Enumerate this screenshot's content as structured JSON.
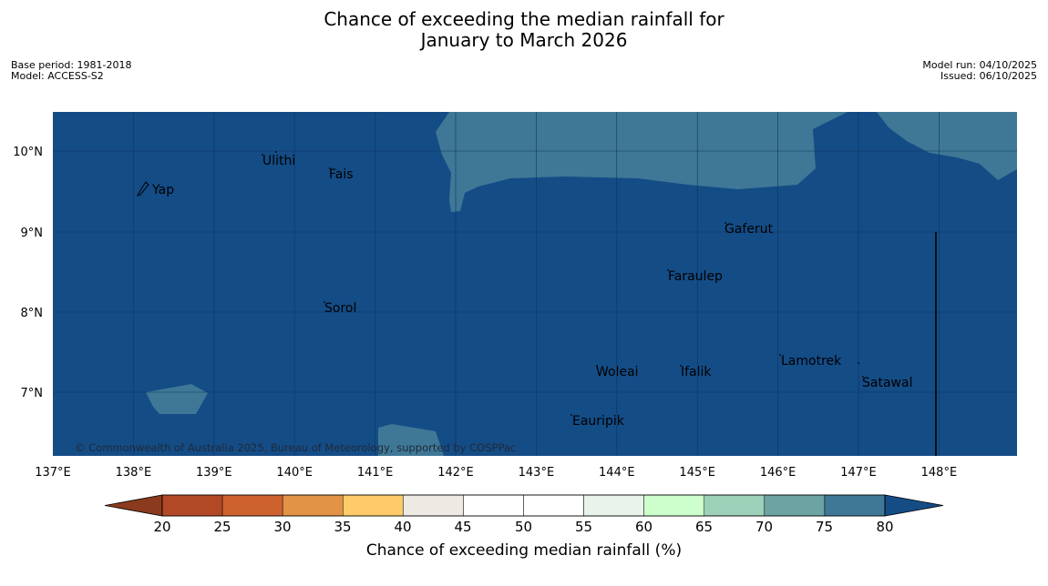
{
  "header": {
    "title_line1": "Chance of exceeding the median rainfall for",
    "title_line2": "January to March 2026",
    "base_period": "Base period: 1981-2018",
    "model": "Model: ACCESS-S2",
    "model_run": "Model run: 04/10/2025",
    "issued": "Issued: 06/10/2025"
  },
  "map": {
    "lon_ticks": [
      "137°E",
      "138°E",
      "139°E",
      "140°E",
      "141°E",
      "142°E",
      "143°E",
      "144°E",
      "145°E",
      "146°E",
      "147°E",
      "148°E"
    ],
    "lat_ticks": [
      "10°N",
      "9°N",
      "8°N",
      "7°N"
    ],
    "islands": [
      {
        "name": "Yap"
      },
      {
        "name": "Ulithi"
      },
      {
        "name": "Fais"
      },
      {
        "name": "Gaferut"
      },
      {
        "name": "Faraulep"
      },
      {
        "name": "Sorol"
      },
      {
        "name": "Woleai"
      },
      {
        "name": "Ifalik"
      },
      {
        "name": "Lamotrek"
      },
      {
        "name": "Satawal"
      },
      {
        "name": "Eauripik"
      }
    ],
    "copyright": "© Commonwealth of Australia 2025, Bureau of Meteorology, supported by COSPPac"
  },
  "legend": {
    "title": "Chance of exceeding median rainfall (%)",
    "ticks": [
      "20",
      "25",
      "30",
      "35",
      "40",
      "45",
      "50",
      "55",
      "60",
      "65",
      "70",
      "75",
      "80"
    ],
    "colors": [
      "#8b3a1e",
      "#b14826",
      "#ce622f",
      "#e29346",
      "#fecb68",
      "#ede9e3",
      "#ffffff",
      "#ffffff",
      "#eaf3ea",
      "#ccffcc",
      "#9dd0b8",
      "#6ca3a3",
      "#3f7896",
      "#144c86"
    ]
  }
}
